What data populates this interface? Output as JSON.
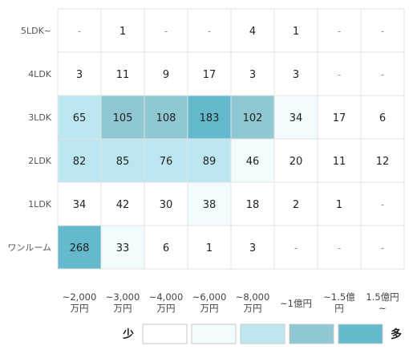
{
  "chart_data": {
    "type": "heatmap",
    "rows": [
      "5LDK~",
      "4LDK",
      "3LDK",
      "2LDK",
      "1LDK",
      "ワンルーム"
    ],
    "columns": [
      "~2,000万円",
      "~3,000万円",
      "~4,000万円",
      "~6,000万円",
      "~8,000万円",
      "~1億円",
      "~1.5億円",
      "1.5億円~"
    ],
    "values": [
      [
        null,
        1,
        null,
        null,
        4,
        1,
        null,
        null
      ],
      [
        3,
        11,
        9,
        17,
        3,
        3,
        null,
        null
      ],
      [
        65,
        105,
        108,
        183,
        102,
        34,
        17,
        6
      ],
      [
        82,
        85,
        76,
        89,
        46,
        20,
        11,
        12
      ],
      [
        34,
        42,
        30,
        38,
        18,
        2,
        1,
        null
      ],
      [
        268,
        33,
        6,
        1,
        3,
        null,
        null,
        null
      ]
    ],
    "levels": [
      [
        0,
        0,
        0,
        0,
        0,
        0,
        0,
        0
      ],
      [
        0,
        0,
        0,
        0,
        0,
        0,
        0,
        0
      ],
      [
        2,
        3,
        3,
        4,
        3,
        1,
        0,
        0
      ],
      [
        2,
        2,
        2,
        2,
        1,
        0,
        0,
        0
      ],
      [
        0,
        0,
        0,
        1,
        0,
        0,
        0,
        0
      ],
      [
        4,
        1,
        0,
        0,
        0,
        0,
        0,
        0
      ]
    ],
    "empty_mark": "-",
    "colors": [
      "#ffffff",
      "#f2fbfe",
      "#bde7f0",
      "#8fc7d2",
      "#64bacc"
    ],
    "grid_color": "#e3e3e3",
    "legend": {
      "low": "少",
      "high": "多",
      "position": "bottom-right"
    }
  }
}
